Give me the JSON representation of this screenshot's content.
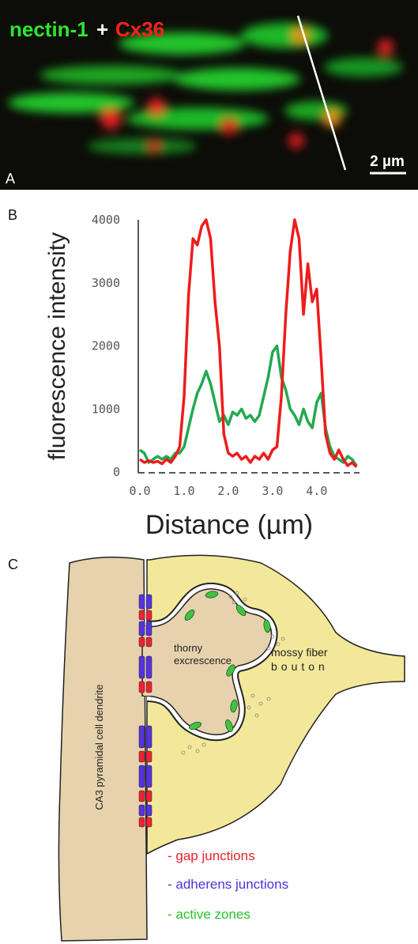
{
  "panel_a": {
    "label": "A",
    "stain_1": "nectin-1",
    "plus": "+",
    "stain_2": "Cx36",
    "scale_bar": "2 µm"
  },
  "chart_data": {
    "type": "line",
    "panel_label": "B",
    "ylabel": "fluorescence intensity",
    "xlabel": "Distance (µm)",
    "x": [
      0,
      0.1,
      0.2,
      0.3,
      0.4,
      0.5,
      0.6,
      0.7,
      0.8,
      0.9,
      1,
      1.1,
      1.2,
      1.3,
      1.4,
      1.5,
      1.6,
      1.7,
      1.8,
      1.9,
      2,
      2.1,
      2.2,
      2.3,
      2.4,
      2.5,
      2.6,
      2.7,
      2.8,
      2.9,
      3,
      3.1,
      3.2,
      3.3,
      3.4,
      3.5,
      3.6,
      3.7,
      3.8,
      3.9,
      4,
      4.1,
      4.2,
      4.3,
      4.4,
      4.5,
      4.6,
      4.7,
      4.8,
      4.9
    ],
    "series": [
      {
        "color": "#ee1c1c",
        "values": [
          200,
          150,
          180,
          150,
          170,
          130,
          200,
          150,
          250,
          400,
          1200,
          2800,
          3700,
          3600,
          3900,
          4000,
          3700,
          2700,
          2000,
          600,
          300,
          250,
          300,
          200,
          250,
          150,
          250,
          200,
          300,
          200,
          350,
          400,
          1200,
          2500,
          3500,
          4000,
          3700,
          2500,
          3300,
          2700,
          2900,
          1800,
          600,
          300,
          200,
          350,
          200,
          100,
          150,
          80
        ]
      },
      {
        "color": "#22a94f",
        "values": [
          350,
          300,
          150,
          200,
          250,
          200,
          250,
          200,
          300,
          300,
          400,
          700,
          1000,
          1250,
          1400,
          1600,
          1400,
          1100,
          800,
          900,
          750,
          950,
          900,
          1000,
          850,
          900,
          800,
          900,
          1200,
          1500,
          1900,
          2000,
          1500,
          1300,
          1000,
          900,
          750,
          1000,
          800,
          700,
          1100,
          1250,
          700,
          400,
          250,
          200,
          150,
          250,
          200,
          100
        ]
      }
    ],
    "xlim": [
      0,
      4.95
    ],
    "ylim": [
      0,
      4000
    ],
    "xticks": [
      {
        "value": 0,
        "label": "0.0"
      },
      {
        "value": 1,
        "label": "1.0"
      },
      {
        "value": 2,
        "label": "2.0"
      },
      {
        "value": 3,
        "label": "3.0"
      },
      {
        "value": 4,
        "label": "4.0"
      }
    ],
    "yticks": [
      0,
      1000,
      2000,
      3000,
      4000
    ],
    "grid": false
  },
  "panel_c": {
    "label": "C",
    "dendrite": "CA3 pyramidal cell dendrite",
    "thorny_1": "thorny",
    "thorny_2": "excrescence",
    "bouton_1": "mossy fiber",
    "bouton_2": "bouton",
    "legend": [
      "- gap junctions",
      "- adherens junctions",
      "- active zones"
    ]
  }
}
